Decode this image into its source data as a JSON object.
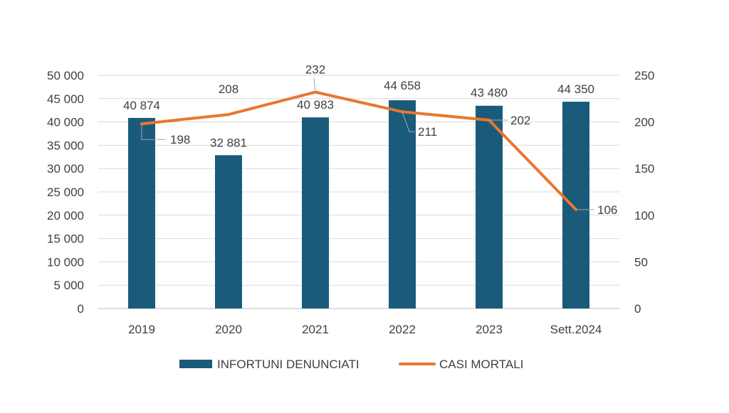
{
  "chart_data": {
    "type": "bar",
    "categories": [
      "2019",
      "2020",
      "2021",
      "2022",
      "2023",
      "Sett.2024"
    ],
    "series": [
      {
        "name": "INFORTUNI DENUNCIATI",
        "type": "bar",
        "axis": "left",
        "color": "#1a5b7c",
        "values": [
          40874,
          32881,
          40983,
          44658,
          43480,
          44350
        ],
        "labels": [
          "40 874",
          "32 881",
          "40 983",
          "44 658",
          "43 480",
          "44 350"
        ]
      },
      {
        "name": "CASI MORTALI",
        "type": "line",
        "axis": "right",
        "color": "#e8772e",
        "values": [
          198,
          208,
          232,
          211,
          202,
          106
        ],
        "labels": [
          "198",
          "208",
          "232",
          "211",
          "202",
          "106"
        ]
      }
    ],
    "y_left": {
      "min": 0,
      "max": 50000,
      "ticks": [
        "0",
        "5 000",
        "10 000",
        "15 000",
        "20 000",
        "25 000",
        "30 000",
        "35 000",
        "40 000",
        "45 000",
        "50 000"
      ]
    },
    "y_right": {
      "min": 0,
      "max": 250,
      "ticks": [
        "0",
        "50",
        "100",
        "150",
        "200",
        "250"
      ]
    },
    "grid": true,
    "legend": "bottom"
  }
}
